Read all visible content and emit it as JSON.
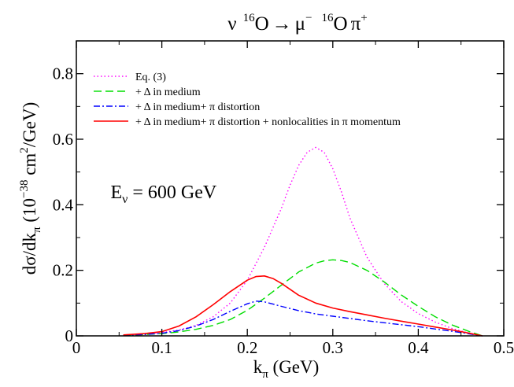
{
  "chart_data": {
    "type": "line",
    "title": "ν ¹⁶O → μ⁻ ¹⁶O π⁺",
    "title_parts": {
      "a": "ν",
      "a_sup": "16",
      "b": "O",
      "arrow": "→",
      "c": "μ",
      "c_sup": "−",
      "d_sup": "16",
      "d": "O",
      "e": "π",
      "e_sup": "+"
    },
    "xlabel": "k_π (GeV)",
    "xlabel_parts": {
      "main": "k",
      "sub": "π",
      "unit": " (GeV)"
    },
    "ylabel": "dσ/dk_π (10^−38 cm²/GeV)",
    "ylabel_parts": {
      "a": "dσ/dk",
      "sub": "π",
      "b": " (10",
      "sup1": "−38",
      "c": " cm",
      "sup2": "2",
      "d": "/GeV)"
    },
    "xlim": [
      0,
      0.5
    ],
    "ylim": [
      0,
      0.9
    ],
    "xticks": [
      0,
      0.1,
      0.2,
      0.3,
      0.4,
      0.5
    ],
    "xtick_labels": [
      "0",
      "0.1",
      "0.2",
      "0.3",
      "0.4",
      "0.5"
    ],
    "yticks": [
      0,
      0.2,
      0.4,
      0.6,
      0.8
    ],
    "ytick_labels": [
      "0",
      "0.2",
      "0.4",
      "0.6",
      "0.8"
    ],
    "grid": false,
    "legend_position": "top-left",
    "annotation": {
      "main": "E",
      "sub": "ν",
      "rest": " = 600 GeV",
      "x": 0.04,
      "y": 0.42
    },
    "series": [
      {
        "name": "Eq. (3)",
        "color": "#ff00ff",
        "dash": "dotted",
        "x": [
          0.055,
          0.08,
          0.1,
          0.12,
          0.14,
          0.16,
          0.18,
          0.2,
          0.22,
          0.24,
          0.25,
          0.26,
          0.27,
          0.28,
          0.29,
          0.3,
          0.31,
          0.32,
          0.34,
          0.36,
          0.38,
          0.4,
          0.42,
          0.44,
          0.46,
          0.475
        ],
        "y": [
          0.003,
          0.006,
          0.01,
          0.018,
          0.032,
          0.058,
          0.1,
          0.17,
          0.27,
          0.39,
          0.46,
          0.52,
          0.56,
          0.575,
          0.56,
          0.51,
          0.44,
          0.36,
          0.24,
          0.16,
          0.105,
          0.068,
          0.042,
          0.022,
          0.008,
          0.0
        ]
      },
      {
        "name": "+ Δ in medium",
        "color": "#00dd00",
        "dash": "dashed",
        "x": [
          0.055,
          0.08,
          0.1,
          0.12,
          0.14,
          0.16,
          0.18,
          0.2,
          0.22,
          0.24,
          0.26,
          0.28,
          0.29,
          0.3,
          0.31,
          0.32,
          0.34,
          0.36,
          0.38,
          0.4,
          0.42,
          0.44,
          0.46,
          0.475
        ],
        "y": [
          0.002,
          0.004,
          0.007,
          0.012,
          0.02,
          0.032,
          0.05,
          0.078,
          0.115,
          0.155,
          0.195,
          0.222,
          0.229,
          0.232,
          0.23,
          0.224,
          0.2,
          0.165,
          0.125,
          0.09,
          0.058,
          0.033,
          0.013,
          0.0
        ]
      },
      {
        "name": "+ Δ in medium+ π distortion",
        "color": "#0000ff",
        "dash": "dashdot",
        "x": [
          0.055,
          0.08,
          0.1,
          0.12,
          0.14,
          0.16,
          0.18,
          0.2,
          0.21,
          0.22,
          0.23,
          0.24,
          0.26,
          0.28,
          0.3,
          0.32,
          0.34,
          0.36,
          0.38,
          0.4,
          0.42,
          0.44,
          0.46,
          0.475
        ],
        "y": [
          0.002,
          0.004,
          0.008,
          0.016,
          0.03,
          0.05,
          0.075,
          0.098,
          0.106,
          0.104,
          0.097,
          0.09,
          0.077,
          0.067,
          0.06,
          0.053,
          0.046,
          0.04,
          0.034,
          0.028,
          0.021,
          0.014,
          0.006,
          0.0
        ]
      },
      {
        "name": "+ Δ in medium+ π distortion + nonlocalities in π momentum",
        "color": "#ff0000",
        "dash": "solid",
        "x": [
          0.055,
          0.08,
          0.1,
          0.12,
          0.14,
          0.16,
          0.18,
          0.2,
          0.21,
          0.22,
          0.23,
          0.24,
          0.25,
          0.26,
          0.28,
          0.3,
          0.32,
          0.34,
          0.36,
          0.38,
          0.4,
          0.42,
          0.44,
          0.46,
          0.475
        ],
        "y": [
          0.003,
          0.007,
          0.013,
          0.03,
          0.058,
          0.095,
          0.135,
          0.17,
          0.181,
          0.183,
          0.175,
          0.16,
          0.142,
          0.124,
          0.1,
          0.085,
          0.074,
          0.064,
          0.054,
          0.045,
          0.036,
          0.027,
          0.018,
          0.008,
          0.0
        ]
      }
    ]
  }
}
